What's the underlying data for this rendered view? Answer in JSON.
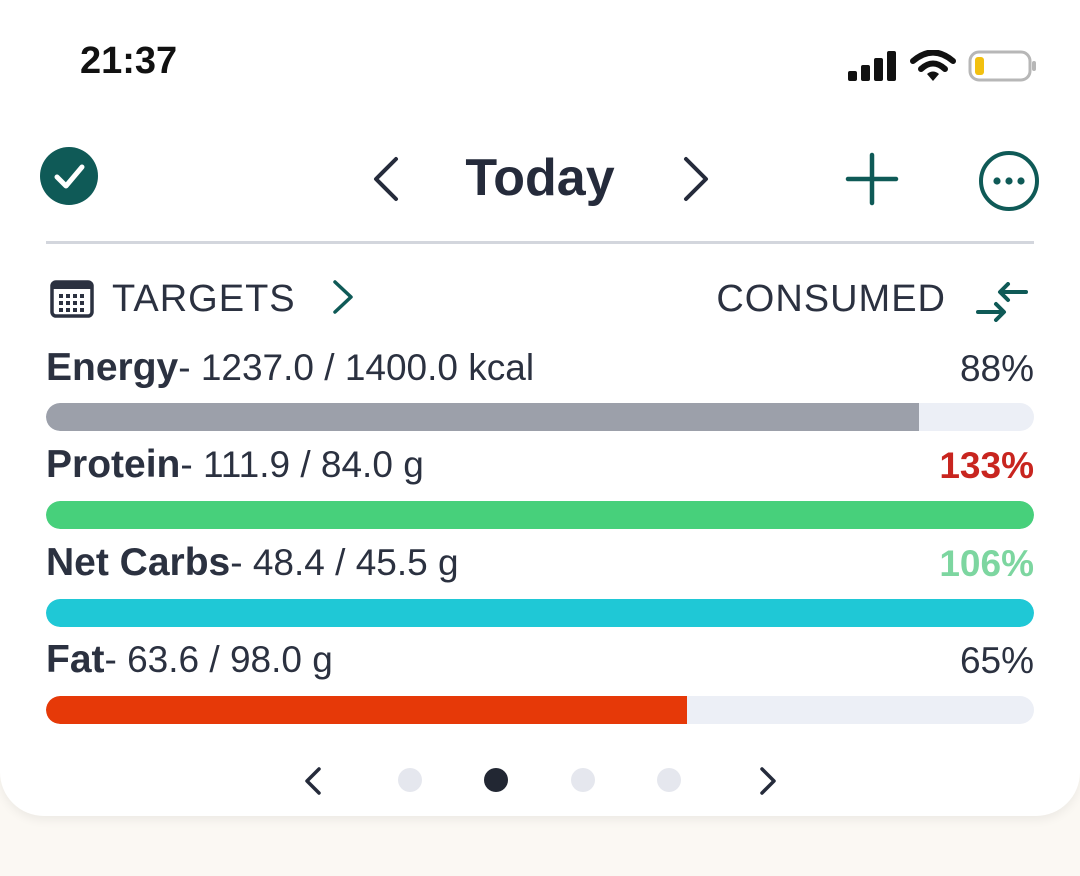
{
  "status_bar": {
    "time": "21:37"
  },
  "header": {
    "title": "Today"
  },
  "section": {
    "targets_label": "TARGETS",
    "consumed_label": "CONSUMED"
  },
  "nutrients": [
    {
      "name": "Energy",
      "values": "- 1237.0 / 1400.0 kcal",
      "percent": "88%",
      "fill_fraction": 0.884,
      "color": "#9ca0aa"
    },
    {
      "name": "Protein",
      "values": "- 111.9 / 84.0 g",
      "percent": "133%",
      "fill_fraction": 1.0,
      "color": "#47d07b",
      "percent_color": "#c8251f"
    },
    {
      "name": "Net Carbs",
      "values": "- 48.4 / 45.5 g",
      "percent": "106%",
      "fill_fraction": 1.0,
      "color": "#1fc8d6",
      "percent_color": "#7dd6a0"
    },
    {
      "name": "Fat",
      "values": "- 63.6 / 98.0 g",
      "percent": "65%",
      "fill_fraction": 0.649,
      "color": "#e63908"
    }
  ],
  "pager": {
    "page_count": 4,
    "active_index": 1
  },
  "colors": {
    "accent": "#0f5a57",
    "divider": "#d3d6dd",
    "track": "#eceff6"
  }
}
